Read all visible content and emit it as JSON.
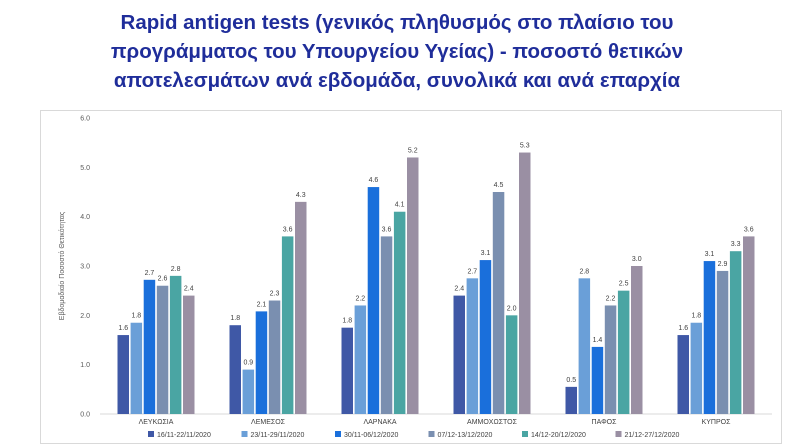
{
  "title_lines": [
    "Rapid antigen tests (γενικός πληθυσμός στο πλαίσιο του",
    "προγράμματος του Υπουργείου Υγείας) - ποσοστό θετικών",
    "αποτελεσμάτων ανά εβδομάδα, συνολικά και ανά επαρχία"
  ],
  "chart_data": {
    "type": "bar",
    "title": "Rapid antigen tests (γενικός πληθυσμός στο πλαίσιο του προγράμματος του Υπουργείου Υγείας) - ποσοστό θετικών αποτελεσμάτων ανά εβδομάδα, συνολικά και ανά επαρχία",
    "ylabel": "Εβδομαδιαίο Ποσοστό Θετικότητας",
    "xlabel": "",
    "ylim": [
      0,
      6
    ],
    "yticks": [
      "0.0",
      "1.0",
      "2.0",
      "3.0",
      "4.0",
      "5.0",
      "6.0"
    ],
    "grid": false,
    "legend_position": "bottom",
    "categories": [
      "ΛΕΥΚΩΣΙΑ",
      "ΛΕΜΕΣΟΣ",
      "ΛΑΡΝΑΚΑ",
      "ΑΜΜΟΧΩΣΤΟΣ",
      "ΠΑΦΟΣ",
      "ΚΥΠΡΟΣ"
    ],
    "series": [
      {
        "name": "16/11-22/11/2020",
        "color": "#3f58a6",
        "values": [
          1.6,
          1.8,
          1.75,
          2.4,
          0.55,
          1.6
        ],
        "labels": [
          "1.6",
          "1.8",
          "1.8",
          "2.4",
          "0.5",
          "1.6"
        ]
      },
      {
        "name": "23/11-29/11/2020",
        "color": "#6a9fd8",
        "values": [
          1.85,
          0.9,
          2.2,
          2.75,
          2.75,
          1.85
        ],
        "labels": [
          "1.8",
          "0.9",
          "2.2",
          "2.7",
          "2.8",
          "1.8"
        ]
      },
      {
        "name": "30/11-06/12/2020",
        "color": "#1a6fdb",
        "values": [
          2.72,
          2.08,
          4.6,
          3.12,
          1.36,
          3.1
        ],
        "labels": [
          "2.7",
          "2.1",
          "4.6",
          "3.1",
          "1.4",
          "3.1"
        ]
      },
      {
        "name": "07/12-13/12/2020",
        "color": "#7a8fb0",
        "values": [
          2.6,
          2.3,
          3.6,
          4.5,
          2.2,
          2.9
        ],
        "labels": [
          "2.6",
          "2.3",
          "3.6",
          "4.5",
          "2.2",
          "2.9"
        ]
      },
      {
        "name": "14/12-20/12/2020",
        "color": "#4aa5a3",
        "values": [
          2.8,
          3.6,
          4.1,
          2.0,
          2.5,
          3.3
        ],
        "labels": [
          "2.8",
          "3.6",
          "4.1",
          "2.0",
          "2.5",
          "3.3"
        ]
      },
      {
        "name": "21/12-27/12/2020",
        "color": "#9a8fa3",
        "values": [
          2.4,
          4.3,
          5.2,
          5.3,
          3.0,
          3.6
        ],
        "labels": [
          "2.4",
          "4.3",
          "5.2",
          "5.3",
          "3.0",
          "3.6"
        ]
      }
    ]
  }
}
